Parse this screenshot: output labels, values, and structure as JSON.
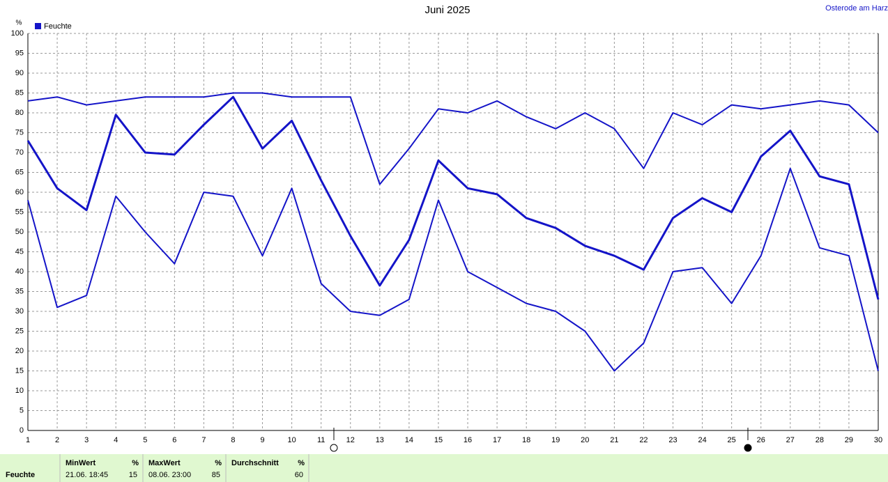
{
  "chart_data": {
    "type": "line",
    "title": "Juni 2025",
    "location": "Osterode am Harz",
    "y_label": "%",
    "x": [
      1,
      2,
      3,
      4,
      5,
      6,
      7,
      8,
      9,
      10,
      11,
      12,
      13,
      14,
      15,
      16,
      17,
      18,
      19,
      20,
      21,
      22,
      23,
      24,
      25,
      26,
      27,
      28,
      29,
      30
    ],
    "xlim": [
      1,
      30
    ],
    "xticks": [
      1,
      2,
      3,
      4,
      5,
      6,
      7,
      8,
      9,
      10,
      11,
      12,
      13,
      14,
      15,
      16,
      17,
      18,
      19,
      20,
      21,
      22,
      23,
      24,
      25,
      26,
      27,
      28,
      29,
      30
    ],
    "ylim": [
      0,
      100
    ],
    "yticks": [
      0,
      5,
      10,
      15,
      20,
      25,
      30,
      35,
      40,
      45,
      50,
      55,
      60,
      65,
      70,
      75,
      80,
      85,
      90,
      95,
      100
    ],
    "grid": true,
    "legend": "top-left",
    "series": [
      {
        "name": "Feuchte",
        "color": "#1414c8",
        "values": [
          73,
          61,
          55.5,
          79.5,
          70,
          69.5,
          77,
          84,
          71,
          78,
          63,
          49,
          36.5,
          48,
          68,
          61,
          59.5,
          53.5,
          51,
          46.5,
          44,
          40.5,
          53.5,
          58.5,
          55,
          69,
          75.5,
          64,
          62,
          33
        ]
      },
      {
        "color": "#1414c8",
        "values": [
          83,
          84,
          82,
          83,
          84,
          84,
          84,
          85,
          85,
          84,
          84,
          84,
          62,
          71,
          81,
          80,
          83,
          79,
          76,
          80,
          76,
          66,
          80,
          77,
          82,
          81,
          82,
          83,
          82,
          75
        ]
      },
      {
        "color": "#1414c8",
        "values": [
          58,
          31,
          34,
          59,
          50,
          42,
          60,
          59,
          44,
          61,
          37,
          30,
          29,
          33,
          58,
          40,
          36,
          32,
          30,
          25,
          15,
          22,
          40,
          41,
          32,
          44,
          66,
          46,
          44,
          15
        ]
      }
    ]
  },
  "summary": {
    "label": "Feuchte",
    "columns": [
      {
        "header": "MinWert",
        "unit": "%",
        "time": "21.06.  18:45",
        "value": 15
      },
      {
        "header": "MaxWert",
        "unit": "%",
        "time": "08.06.  23:00",
        "value": 85
      },
      {
        "header": "Durchschnitt",
        "unit": "%",
        "value": 60
      }
    ]
  }
}
